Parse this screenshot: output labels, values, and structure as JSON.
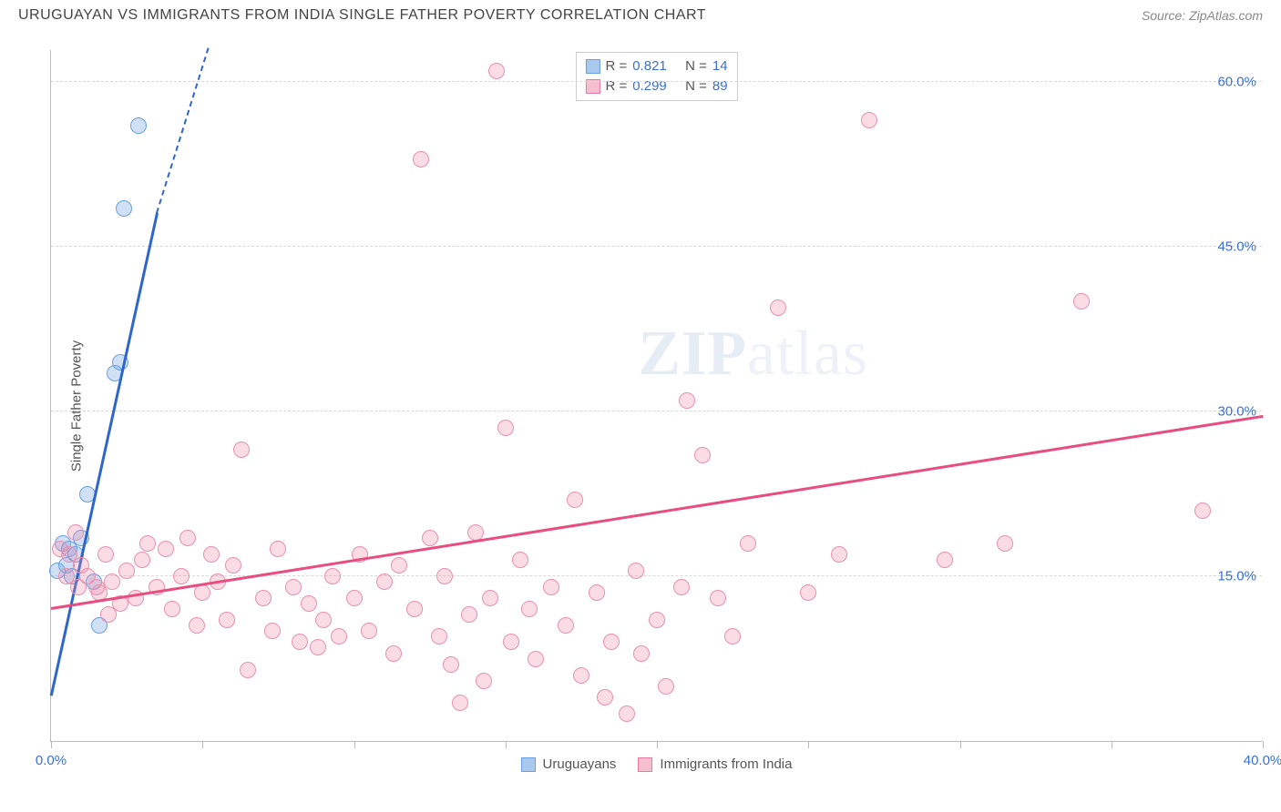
{
  "header": {
    "title": "URUGUAYAN VS IMMIGRANTS FROM INDIA SINGLE FATHER POVERTY CORRELATION CHART",
    "source_prefix": "Source: ",
    "source_name": "ZipAtlas.com"
  },
  "chart": {
    "type": "scatter",
    "ylabel": "Single Father Poverty",
    "xlim": [
      0,
      40
    ],
    "ylim": [
      0,
      63
    ],
    "xtick_positions": [
      0,
      5,
      10,
      15,
      20,
      25,
      30,
      35,
      40
    ],
    "xtick_labels": {
      "0": "0.0%",
      "40": "40.0%"
    },
    "ytick_positions": [
      15,
      30,
      45,
      60
    ],
    "ytick_labels": {
      "15": "15.0%",
      "30": "30.0%",
      "45": "45.0%",
      "60": "60.0%"
    },
    "tick_label_color": "#3b6fd4",
    "grid_color": "#d8d8d8",
    "background_color": "#ffffff",
    "point_radius": 9,
    "watermark": {
      "zip": "ZIP",
      "atlas": "atlas"
    },
    "series": [
      {
        "name": "Uruguayans",
        "color_fill": "rgba(120,170,230,0.35)",
        "color_stroke": "#6a9fe0",
        "swatch_fill": "#a9c8ed",
        "swatch_stroke": "#6a9fe0",
        "R": "0.821",
        "N": "14",
        "trend": {
          "x1": 0.0,
          "y1": 4.0,
          "x2": 3.5,
          "y2": 48.0,
          "dash_to_x": 5.2,
          "dash_to_y": 63.0,
          "color": "#2e66c9",
          "width": 2.5
        },
        "points": [
          {
            "x": 0.2,
            "y": 15.5
          },
          {
            "x": 0.4,
            "y": 18.0
          },
          {
            "x": 0.5,
            "y": 16.0
          },
          {
            "x": 0.6,
            "y": 17.5
          },
          {
            "x": 0.7,
            "y": 15.0
          },
          {
            "x": 0.8,
            "y": 17.0
          },
          {
            "x": 1.0,
            "y": 18.5
          },
          {
            "x": 1.2,
            "y": 22.5
          },
          {
            "x": 1.6,
            "y": 10.5
          },
          {
            "x": 2.1,
            "y": 33.5
          },
          {
            "x": 2.3,
            "y": 34.5
          },
          {
            "x": 2.4,
            "y": 48.5
          },
          {
            "x": 2.9,
            "y": 56.0
          },
          {
            "x": 1.4,
            "y": 14.5
          }
        ]
      },
      {
        "name": "Immigrants from India",
        "color_fill": "rgba(240,140,170,0.30)",
        "color_stroke": "#e98fb0",
        "swatch_fill": "#f5bfd0",
        "swatch_stroke": "#e77aa0",
        "R": "0.299",
        "N": "89",
        "trend": {
          "x1": 0.0,
          "y1": 12.0,
          "x2": 40.0,
          "y2": 29.5,
          "color": "#e94d80",
          "width": 2.5
        },
        "points": [
          {
            "x": 0.3,
            "y": 17.5
          },
          {
            "x": 0.6,
            "y": 17.0
          },
          {
            "x": 0.8,
            "y": 19.0
          },
          {
            "x": 0.5,
            "y": 15.0
          },
          {
            "x": 1.0,
            "y": 16.0
          },
          {
            "x": 1.2,
            "y": 15.0
          },
          {
            "x": 1.5,
            "y": 14.0
          },
          {
            "x": 1.8,
            "y": 17.0
          },
          {
            "x": 1.6,
            "y": 13.5
          },
          {
            "x": 2.0,
            "y": 14.5
          },
          {
            "x": 2.3,
            "y": 12.5
          },
          {
            "x": 2.5,
            "y": 15.5
          },
          {
            "x": 2.8,
            "y": 13.0
          },
          {
            "x": 3.0,
            "y": 16.5
          },
          {
            "x": 3.2,
            "y": 18.0
          },
          {
            "x": 3.5,
            "y": 14.0
          },
          {
            "x": 3.8,
            "y": 17.5
          },
          {
            "x": 4.0,
            "y": 12.0
          },
          {
            "x": 4.3,
            "y": 15.0
          },
          {
            "x": 4.5,
            "y": 18.5
          },
          {
            "x": 4.8,
            "y": 10.5
          },
          {
            "x": 5.0,
            "y": 13.5
          },
          {
            "x": 5.3,
            "y": 17.0
          },
          {
            "x": 5.5,
            "y": 14.5
          },
          {
            "x": 5.8,
            "y": 11.0
          },
          {
            "x": 6.0,
            "y": 16.0
          },
          {
            "x": 6.5,
            "y": 6.5
          },
          {
            "x": 6.3,
            "y": 26.5
          },
          {
            "x": 7.0,
            "y": 13.0
          },
          {
            "x": 7.3,
            "y": 10.0
          },
          {
            "x": 7.5,
            "y": 17.5
          },
          {
            "x": 8.0,
            "y": 14.0
          },
          {
            "x": 8.2,
            "y": 9.0
          },
          {
            "x": 8.5,
            "y": 12.5
          },
          {
            "x": 8.8,
            "y": 8.5
          },
          {
            "x": 9.0,
            "y": 11.0
          },
          {
            "x": 9.3,
            "y": 15.0
          },
          {
            "x": 9.5,
            "y": 9.5
          },
          {
            "x": 10.0,
            "y": 13.0
          },
          {
            "x": 10.2,
            "y": 17.0
          },
          {
            "x": 10.5,
            "y": 10.0
          },
          {
            "x": 11.0,
            "y": 14.5
          },
          {
            "x": 11.3,
            "y": 8.0
          },
          {
            "x": 11.5,
            "y": 16.0
          },
          {
            "x": 12.0,
            "y": 12.0
          },
          {
            "x": 12.2,
            "y": 53.0
          },
          {
            "x": 12.5,
            "y": 18.5
          },
          {
            "x": 12.8,
            "y": 9.5
          },
          {
            "x": 13.0,
            "y": 15.0
          },
          {
            "x": 13.2,
            "y": 7.0
          },
          {
            "x": 13.5,
            "y": 3.5
          },
          {
            "x": 13.8,
            "y": 11.5
          },
          {
            "x": 14.0,
            "y": 19.0
          },
          {
            "x": 14.3,
            "y": 5.5
          },
          {
            "x": 14.5,
            "y": 13.0
          },
          {
            "x": 14.7,
            "y": 61.0
          },
          {
            "x": 15.0,
            "y": 28.5
          },
          {
            "x": 15.2,
            "y": 9.0
          },
          {
            "x": 15.5,
            "y": 16.5
          },
          {
            "x": 15.8,
            "y": 12.0
          },
          {
            "x": 16.0,
            "y": 7.5
          },
          {
            "x": 16.5,
            "y": 14.0
          },
          {
            "x": 17.0,
            "y": 10.5
          },
          {
            "x": 17.3,
            "y": 22.0
          },
          {
            "x": 17.5,
            "y": 6.0
          },
          {
            "x": 18.0,
            "y": 13.5
          },
          {
            "x": 18.3,
            "y": 4.0
          },
          {
            "x": 18.5,
            "y": 9.0
          },
          {
            "x": 19.0,
            "y": 2.5
          },
          {
            "x": 19.3,
            "y": 15.5
          },
          {
            "x": 19.5,
            "y": 8.0
          },
          {
            "x": 20.0,
            "y": 11.0
          },
          {
            "x": 20.3,
            "y": 5.0
          },
          {
            "x": 20.8,
            "y": 14.0
          },
          {
            "x": 21.0,
            "y": 31.0
          },
          {
            "x": 21.5,
            "y": 26.0
          },
          {
            "x": 22.0,
            "y": 13.0
          },
          {
            "x": 22.5,
            "y": 9.5
          },
          {
            "x": 23.0,
            "y": 18.0
          },
          {
            "x": 24.0,
            "y": 39.5
          },
          {
            "x": 25.0,
            "y": 13.5
          },
          {
            "x": 26.0,
            "y": 17.0
          },
          {
            "x": 27.0,
            "y": 56.5
          },
          {
            "x": 29.5,
            "y": 16.5
          },
          {
            "x": 31.5,
            "y": 18.0
          },
          {
            "x": 34.0,
            "y": 40.0
          },
          {
            "x": 38.0,
            "y": 21.0
          },
          {
            "x": 0.9,
            "y": 14.0
          },
          {
            "x": 1.9,
            "y": 11.5
          }
        ]
      }
    ]
  },
  "legend_top": {
    "r_label": "R =",
    "n_label": "N =",
    "value_color": "#3b6fd4",
    "text_color": "#555"
  },
  "legend_bottom": {
    "items": [
      "Uruguayans",
      "Immigrants from India"
    ]
  }
}
